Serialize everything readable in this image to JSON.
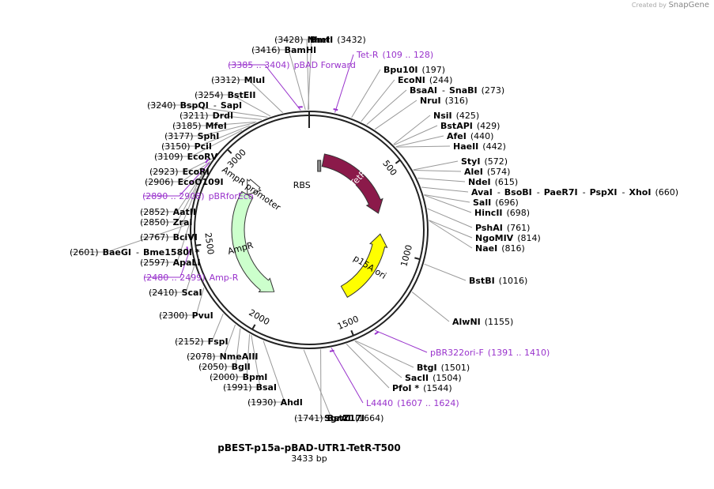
{
  "credit": {
    "prefix": "Created by",
    "product": "SnapGene"
  },
  "plasmid": {
    "name": "pBEST-p15a-pBAD-UTR1-TetR-T500",
    "size": "3433 bp",
    "length": 3433
  },
  "colors": {
    "primer": "#9933cc",
    "tetr": "#8b1a4a",
    "ori": "#ffff00",
    "ampr": "#ccffcc",
    "promoter": "#ffffff",
    "rbs": "#888888",
    "line": "#999999"
  },
  "ticks": [
    {
      "label": "500",
      "pos": 500
    },
    {
      "label": "1000",
      "pos": 1000
    },
    {
      "label": "1500",
      "pos": 1500
    },
    {
      "label": "2000",
      "pos": 2000
    },
    {
      "label": "2500",
      "pos": 2500
    },
    {
      "label": "3000",
      "pos": 3000
    }
  ],
  "features": [
    {
      "name": "TetR",
      "start": 109,
      "end": 729,
      "dir": 1,
      "color": "#8b1a4a",
      "text": "#ffffff",
      "r": 90
    },
    {
      "name": "p15A ori",
      "start": 890,
      "end": 1435,
      "dir": -1,
      "color": "#ffff00",
      "text": "#000000",
      "r": 90
    },
    {
      "name": "AmpR",
      "start": 1998,
      "end": 2858,
      "dir": -1,
      "color": "#ccffcc",
      "text": "#000000",
      "r": 90
    },
    {
      "name": "AmpR promoter",
      "start": 2858,
      "end": 2963,
      "dir": -1,
      "color": "#ffffff",
      "text": "#000000",
      "r": 90
    },
    {
      "name": "RBS",
      "start": 85,
      "end": 105,
      "dir": 1,
      "color": "#888888",
      "text": "#000000",
      "r": 90
    }
  ],
  "labels": [
    {
      "id": "nhei",
      "kind": "enzyme",
      "name": "NheI",
      "num": "(3428)",
      "side": "left",
      "pos": 3428
    },
    {
      "id": "bamhi",
      "kind": "enzyme",
      "name": "BamHI",
      "num": "(3416)",
      "side": "left",
      "pos": 3416
    },
    {
      "id": "pbadf",
      "kind": "primer",
      "name": "pBAD Forward",
      "num": "(3385 .. 3404)",
      "side": "left",
      "pos": 3394
    },
    {
      "id": "mlui",
      "kind": "enzyme",
      "name": "MluI",
      "num": "(3312)",
      "side": "left",
      "pos": 3312
    },
    {
      "id": "bsteii",
      "kind": "enzyme",
      "name": "BstEII",
      "num": "(3254)",
      "side": "left",
      "pos": 3254
    },
    {
      "id": "bspqi",
      "kind": "enzyme",
      "name": "BspQI",
      "num": "(3240)",
      "side": "left",
      "pos": 3240,
      "name2": "SapI"
    },
    {
      "id": "drdi",
      "kind": "enzyme",
      "name": "DrdI",
      "num": "(3211)",
      "side": "left",
      "pos": 3211
    },
    {
      "id": "mfei",
      "kind": "enzyme",
      "name": "MfeI",
      "num": "(3185)",
      "side": "left",
      "pos": 3185
    },
    {
      "id": "sphi",
      "kind": "enzyme",
      "name": "SphI",
      "num": "(3177)",
      "side": "left",
      "pos": 3177
    },
    {
      "id": "pcii",
      "kind": "enzyme",
      "name": "PciI",
      "num": "(3150)",
      "side": "left",
      "pos": 3150
    },
    {
      "id": "ecorv",
      "kind": "enzyme",
      "name": "EcoRV",
      "num": "(3109)",
      "side": "left",
      "pos": 3109
    },
    {
      "id": "ecori",
      "kind": "enzyme",
      "name": "EcoRI",
      "num": "(2923)",
      "side": "left",
      "pos": 2923
    },
    {
      "id": "eco0109i",
      "kind": "enzyme",
      "name": "EcoO109I",
      "num": "(2906)",
      "side": "left",
      "pos": 2906
    },
    {
      "id": "pbrfor",
      "kind": "primer",
      "name": "pBRforEco",
      "num": "(2890 .. 2908)",
      "side": "left",
      "pos": 2899
    },
    {
      "id": "aatii",
      "kind": "enzyme",
      "name": "AatII",
      "num": "(2852)",
      "side": "left",
      "pos": 2852
    },
    {
      "id": "zrai",
      "kind": "enzyme",
      "name": "ZraI",
      "num": "(2850)",
      "side": "left",
      "pos": 2850
    },
    {
      "id": "bcivi",
      "kind": "enzyme",
      "name": "BciVI",
      "num": "(2767)",
      "side": "left",
      "pos": 2767
    },
    {
      "id": "baegi",
      "kind": "enzyme",
      "name": "BaeGI",
      "num": "(2601)",
      "side": "left",
      "pos": 2601,
      "name2": "Bme1580I *"
    },
    {
      "id": "apali",
      "kind": "enzyme",
      "name": "ApaLI",
      "num": "(2597)",
      "side": "left",
      "pos": 2597
    },
    {
      "id": "ampr",
      "kind": "primer",
      "name": "Amp-R",
      "num": "(2480 .. 2499)",
      "side": "left",
      "pos": 2490
    },
    {
      "id": "scai",
      "kind": "enzyme",
      "name": "ScaI",
      "num": "(2410)",
      "side": "left",
      "pos": 2410
    },
    {
      "id": "pvui",
      "kind": "enzyme",
      "name": "PvuI",
      "num": "(2300)",
      "side": "left",
      "pos": 2300
    },
    {
      "id": "fspi",
      "kind": "enzyme",
      "name": "FspI",
      "num": "(2152)",
      "side": "left",
      "pos": 2152
    },
    {
      "id": "nmeaiii",
      "kind": "enzyme",
      "name": "NmeAIII",
      "num": "(2078)",
      "side": "left",
      "pos": 2078
    },
    {
      "id": "bgli",
      "kind": "enzyme",
      "name": "BglI",
      "num": "(2050)",
      "side": "left",
      "pos": 2050
    },
    {
      "id": "bpmi",
      "kind": "enzyme",
      "name": "BpmI",
      "num": "(2000)",
      "side": "left",
      "pos": 2000
    },
    {
      "id": "bsai",
      "kind": "enzyme",
      "name": "BsaI",
      "num": "(1991)",
      "side": "left",
      "pos": 1991
    },
    {
      "id": "ahdi",
      "kind": "enzyme",
      "name": "AhdI",
      "num": "(1930)",
      "side": "left",
      "pos": 1930
    },
    {
      "id": "bstz17i",
      "kind": "enzyme",
      "name": "BstZ17I",
      "num": "(1741)",
      "side": "left",
      "pos": 1741
    },
    {
      "id": "bmti",
      "kind": "enzyme",
      "name": "BmtI",
      "num": "(3432)",
      "side": "right",
      "pos": 3432
    },
    {
      "id": "tetr",
      "kind": "primer",
      "name": "Tet-R",
      "num": "(109 .. 128)",
      "side": "right",
      "pos": 118
    },
    {
      "id": "bpu10i",
      "kind": "enzyme",
      "name": "Bpu10I",
      "num": "(197)",
      "side": "right",
      "pos": 197
    },
    {
      "id": "econi",
      "kind": "enzyme",
      "name": "EcoNI",
      "num": "(244)",
      "side": "right",
      "pos": 244
    },
    {
      "id": "bsaai",
      "kind": "enzyme",
      "name": "BsaAI",
      "num": "(273)",
      "side": "right",
      "pos": 273,
      "name2": "SnaBI"
    },
    {
      "id": "nrui",
      "kind": "enzyme",
      "name": "NruI",
      "num": "(316)",
      "side": "right",
      "pos": 316
    },
    {
      "id": "nsii",
      "kind": "enzyme",
      "name": "NsiI",
      "num": "(425)",
      "side": "right",
      "pos": 425
    },
    {
      "id": "bstapi",
      "kind": "enzyme",
      "name": "BstAPI",
      "num": "(429)",
      "side": "right",
      "pos": 429
    },
    {
      "id": "afei",
      "kind": "enzyme",
      "name": "AfeI",
      "num": "(440)",
      "side": "right",
      "pos": 440
    },
    {
      "id": "haeii",
      "kind": "enzyme",
      "name": "HaeII",
      "num": "(442)",
      "side": "right",
      "pos": 442
    },
    {
      "id": "styi",
      "kind": "enzyme",
      "name": "StyI",
      "num": "(572)",
      "side": "right",
      "pos": 572
    },
    {
      "id": "alei",
      "kind": "enzyme",
      "name": "AleI",
      "num": "(574)",
      "side": "right",
      "pos": 574
    },
    {
      "id": "ndei",
      "kind": "enzyme",
      "name": "NdeI",
      "num": "(615)",
      "side": "right",
      "pos": 615
    },
    {
      "id": "avai",
      "kind": "enzyme",
      "name": "AvaI",
      "num": "(660)",
      "side": "right",
      "pos": 660,
      "name2": "BsoBI",
      "name3": "PaeR7I",
      "name4": "PspXI",
      "name5": "XhoI"
    },
    {
      "id": "sali",
      "kind": "enzyme",
      "name": "SalI",
      "num": "(696)",
      "side": "right",
      "pos": 696
    },
    {
      "id": "hincii",
      "kind": "enzyme",
      "name": "HincII",
      "num": "(698)",
      "side": "right",
      "pos": 698
    },
    {
      "id": "pshai",
      "kind": "enzyme",
      "name": "PshAI",
      "num": "(761)",
      "side": "right",
      "pos": 761
    },
    {
      "id": "ngomiv",
      "kind": "enzyme",
      "name": "NgoMIV",
      "num": "(814)",
      "side": "right",
      "pos": 814
    },
    {
      "id": "naei",
      "kind": "enzyme",
      "name": "NaeI",
      "num": "(816)",
      "side": "right",
      "pos": 816
    },
    {
      "id": "bstbi",
      "kind": "enzyme",
      "name": "BstBI",
      "num": "(1016)",
      "side": "right",
      "pos": 1016
    },
    {
      "id": "alwni",
      "kind": "enzyme",
      "name": "AlwNI",
      "num": "(1155)",
      "side": "right",
      "pos": 1155
    },
    {
      "id": "pbr322",
      "kind": "primer",
      "name": "pBR322ori-F",
      "num": "(1391 .. 1410)",
      "side": "right",
      "pos": 1400
    },
    {
      "id": "btgi",
      "kind": "enzyme",
      "name": "BtgI",
      "num": "(1501)",
      "side": "right",
      "pos": 1501
    },
    {
      "id": "sacii",
      "kind": "enzyme",
      "name": "SacII",
      "num": "(1504)",
      "side": "right",
      "pos": 1504
    },
    {
      "id": "pfoi",
      "kind": "enzyme",
      "name": "PfoI *",
      "num": "(1544)",
      "side": "right",
      "pos": 1544
    },
    {
      "id": "l4440",
      "kind": "primer",
      "name": "L4440",
      "num": "(1607 .. 1624)",
      "side": "right",
      "pos": 1615
    },
    {
      "id": "sgrai",
      "kind": "enzyme",
      "name": "SgrAI",
      "num": "(1664)",
      "side": "right",
      "pos": 1664
    }
  ]
}
